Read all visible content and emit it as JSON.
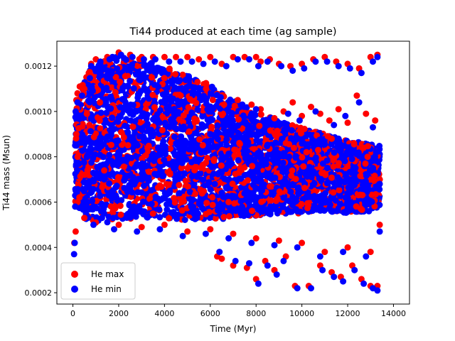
{
  "chart_data": {
    "type": "scatter",
    "title": "Ti44 produced at each time (ag sample)",
    "xlabel": "Time (Myr)",
    "ylabel": "Ti44 mass (Msun)",
    "xlim": [
      -700,
      14700
    ],
    "ylim": [
      0.00015,
      0.00131
    ],
    "xticks": [
      {
        "value": 0,
        "label": "0"
      },
      {
        "value": 2000,
        "label": "2000"
      },
      {
        "value": 4000,
        "label": "4000"
      },
      {
        "value": 6000,
        "label": "6000"
      },
      {
        "value": 8000,
        "label": "8000"
      },
      {
        "value": 10000,
        "label": "10000"
      },
      {
        "value": 12000,
        "label": "12000"
      },
      {
        "value": 14000,
        "label": "14000"
      }
    ],
    "yticks": [
      {
        "value": 0.0002,
        "label": "0.0002"
      },
      {
        "value": 0.0004,
        "label": "0.0004"
      },
      {
        "value": 0.0006,
        "label": "0.0006"
      },
      {
        "value": 0.0008,
        "label": "0.0008"
      },
      {
        "value": 0.001,
        "label": "0.0010"
      },
      {
        "value": 0.0012,
        "label": "0.0012"
      }
    ],
    "grid": false,
    "legend": "lower-left",
    "series": [
      {
        "name": "He max",
        "color": "#ff0000",
        "points": [
          [
            60,
            0.00042
          ],
          [
            120,
            0.00047
          ],
          [
            150,
            0.00105
          ],
          [
            200,
            0.00108
          ],
          [
            300,
            0.00111
          ],
          [
            500,
            0.0011
          ],
          [
            800,
            0.00121
          ],
          [
            1000,
            0.00123
          ],
          [
            1500,
            0.00124
          ],
          [
            2000,
            0.00126
          ],
          [
            2500,
            0.00125
          ],
          [
            3000,
            0.00124
          ],
          [
            3500,
            0.00124
          ],
          [
            4000,
            0.00124
          ],
          [
            4500,
            0.00124
          ],
          [
            5000,
            0.00124
          ],
          [
            5500,
            0.00123
          ],
          [
            6000,
            0.00124
          ],
          [
            6500,
            0.00121
          ],
          [
            7000,
            0.00124
          ],
          [
            7500,
            0.00124
          ],
          [
            8000,
            0.00124
          ],
          [
            8200,
            0.00122
          ],
          [
            8600,
            0.00123
          ],
          [
            9000,
            0.00121
          ],
          [
            9500,
            0.0012
          ],
          [
            10000,
            0.00121
          ],
          [
            10500,
            0.00123
          ],
          [
            11000,
            0.00124
          ],
          [
            11500,
            0.00122
          ],
          [
            12000,
            0.00121
          ],
          [
            12500,
            0.00119
          ],
          [
            13000,
            0.00124
          ],
          [
            13300,
            0.00125
          ],
          [
            6600,
            0.00103
          ],
          [
            7200,
            0.00105
          ],
          [
            7800,
            0.00103
          ],
          [
            8200,
            0.00101
          ],
          [
            8800,
            0.00097
          ],
          [
            9200,
            0.001
          ],
          [
            9600,
            0.00104
          ],
          [
            10000,
            0.00098
          ],
          [
            10400,
            0.00102
          ],
          [
            10800,
            0.00099
          ],
          [
            11200,
            0.00096
          ],
          [
            11600,
            0.00101
          ],
          [
            12000,
            0.00095
          ],
          [
            12400,
            0.00107
          ],
          [
            12800,
            0.00099
          ],
          [
            13200,
            0.00096
          ],
          [
            11300,
            0.00088
          ],
          [
            12700,
            0.00084
          ],
          [
            9300,
            0.00086
          ],
          [
            10200,
            0.00082
          ],
          [
            6300,
            0.00036
          ],
          [
            6500,
            0.00035
          ],
          [
            7000,
            0.00032
          ],
          [
            7600,
            0.00031
          ],
          [
            8000,
            0.00026
          ],
          [
            8400,
            0.00034
          ],
          [
            8800,
            0.0003
          ],
          [
            9300,
            0.00036
          ],
          [
            9700,
            0.00023
          ],
          [
            10300,
            0.00023
          ],
          [
            10800,
            0.00032
          ],
          [
            11300,
            0.00029
          ],
          [
            11700,
            0.00027
          ],
          [
            12200,
            0.00032
          ],
          [
            12600,
            0.00026
          ],
          [
            13000,
            0.00023
          ],
          [
            13300,
            0.00023
          ],
          [
            500,
            0.00053
          ],
          [
            1000,
            0.00051
          ],
          [
            2000,
            0.0005
          ],
          [
            3000,
            0.00049
          ],
          [
            4000,
            0.0005
          ],
          [
            5000,
            0.00047
          ],
          [
            6000,
            0.00048
          ],
          [
            7000,
            0.00046
          ],
          [
            8000,
            0.00044
          ],
          [
            9000,
            0.00043
          ],
          [
            10000,
            0.00042
          ],
          [
            11000,
            0.00038
          ],
          [
            12000,
            0.0004
          ],
          [
            13000,
            0.00038
          ],
          [
            13400,
            0.0005
          ],
          [
            200,
            0.0006
          ],
          [
            150,
            0.0009
          ],
          [
            13400,
            0.0007
          ]
        ]
      },
      {
        "name": "He min",
        "color": "#0000ff",
        "points": [
          [
            50,
            0.00037
          ],
          [
            80,
            0.00042
          ],
          [
            120,
            0.001
          ],
          [
            200,
            0.00104
          ],
          [
            400,
            0.00107
          ],
          [
            800,
            0.0012
          ],
          [
            1200,
            0.00122
          ],
          [
            1600,
            0.00123
          ],
          [
            2100,
            0.00125
          ],
          [
            2600,
            0.00124
          ],
          [
            3100,
            0.00123
          ],
          [
            3600,
            0.00123
          ],
          [
            4200,
            0.00122
          ],
          [
            4700,
            0.00122
          ],
          [
            5200,
            0.00122
          ],
          [
            5700,
            0.00121
          ],
          [
            6200,
            0.00122
          ],
          [
            6700,
            0.0012
          ],
          [
            7200,
            0.00123
          ],
          [
            7700,
            0.00123
          ],
          [
            8100,
            0.0012
          ],
          [
            8500,
            0.00122
          ],
          [
            9100,
            0.0012
          ],
          [
            9600,
            0.00118
          ],
          [
            10100,
            0.00119
          ],
          [
            10600,
            0.00122
          ],
          [
            11100,
            0.00122
          ],
          [
            11600,
            0.0012
          ],
          [
            12100,
            0.00119
          ],
          [
            12600,
            0.00117
          ],
          [
            13100,
            0.00122
          ],
          [
            13300,
            0.00124
          ],
          [
            6800,
            0.001
          ],
          [
            7400,
            0.00103
          ],
          [
            8000,
            0.00101
          ],
          [
            8600,
            0.00095
          ],
          [
            9400,
            0.00099
          ],
          [
            9900,
            0.00096
          ],
          [
            10600,
            0.001
          ],
          [
            11400,
            0.00094
          ],
          [
            11900,
            0.00098
          ],
          [
            12500,
            0.00104
          ],
          [
            13100,
            0.00093
          ],
          [
            6400,
            0.00038
          ],
          [
            7100,
            0.00034
          ],
          [
            7700,
            0.00033
          ],
          [
            8100,
            0.00024
          ],
          [
            8500,
            0.00032
          ],
          [
            8900,
            0.00028
          ],
          [
            9200,
            0.00034
          ],
          [
            9800,
            0.00022
          ],
          [
            10400,
            0.00022
          ],
          [
            10900,
            0.0003
          ],
          [
            11400,
            0.00027
          ],
          [
            11800,
            0.00025
          ],
          [
            12300,
            0.0003
          ],
          [
            12700,
            0.00024
          ],
          [
            13100,
            0.00022
          ],
          [
            13300,
            0.00021
          ],
          [
            900,
            0.0005
          ],
          [
            1800,
            0.00048
          ],
          [
            2800,
            0.00047
          ],
          [
            3800,
            0.00048
          ],
          [
            4800,
            0.00045
          ],
          [
            5800,
            0.00046
          ],
          [
            6800,
            0.00044
          ],
          [
            7800,
            0.00042
          ],
          [
            8800,
            0.00041
          ],
          [
            9800,
            0.0004
          ],
          [
            10800,
            0.00036
          ],
          [
            11800,
            0.00038
          ],
          [
            12800,
            0.00036
          ],
          [
            13400,
            0.00047
          ],
          [
            100,
            0.00058
          ],
          [
            100,
            0.00085
          ],
          [
            13400,
            0.00068
          ],
          [
            4500,
            0.0011
          ],
          [
            6000,
            0.0009
          ]
        ]
      }
    ],
    "dense_band": {
      "description": "dense overlapping cloud of points spanning the whole time range",
      "upper_envelope": [
        [
          100,
          0.001
        ],
        [
          600,
          0.00118
        ],
        [
          1500,
          0.00124
        ],
        [
          2000,
          0.00125
        ],
        [
          3000,
          0.00123
        ],
        [
          4000,
          0.0012
        ],
        [
          5000,
          0.00116
        ],
        [
          6000,
          0.00112
        ],
        [
          7000,
          0.00105
        ],
        [
          8000,
          0.001
        ],
        [
          9000,
          0.00096
        ],
        [
          10000,
          0.00093
        ],
        [
          11000,
          0.0009
        ],
        [
          12000,
          0.00087
        ],
        [
          13000,
          0.00086
        ],
        [
          13400,
          0.00085
        ]
      ],
      "lower_envelope": [
        [
          100,
          0.0006
        ],
        [
          600,
          0.00052
        ],
        [
          1500,
          0.00051
        ],
        [
          2000,
          0.00052
        ],
        [
          3000,
          0.00053
        ],
        [
          4000,
          0.00053
        ],
        [
          5000,
          0.00052
        ],
        [
          6000,
          0.00052
        ],
        [
          7000,
          0.00053
        ],
        [
          8000,
          0.00054
        ],
        [
          9000,
          0.00055
        ],
        [
          10000,
          0.00055
        ],
        [
          11000,
          0.00056
        ],
        [
          12000,
          0.00055
        ],
        [
          13000,
          0.00056
        ],
        [
          13400,
          0.00058
        ]
      ]
    }
  }
}
